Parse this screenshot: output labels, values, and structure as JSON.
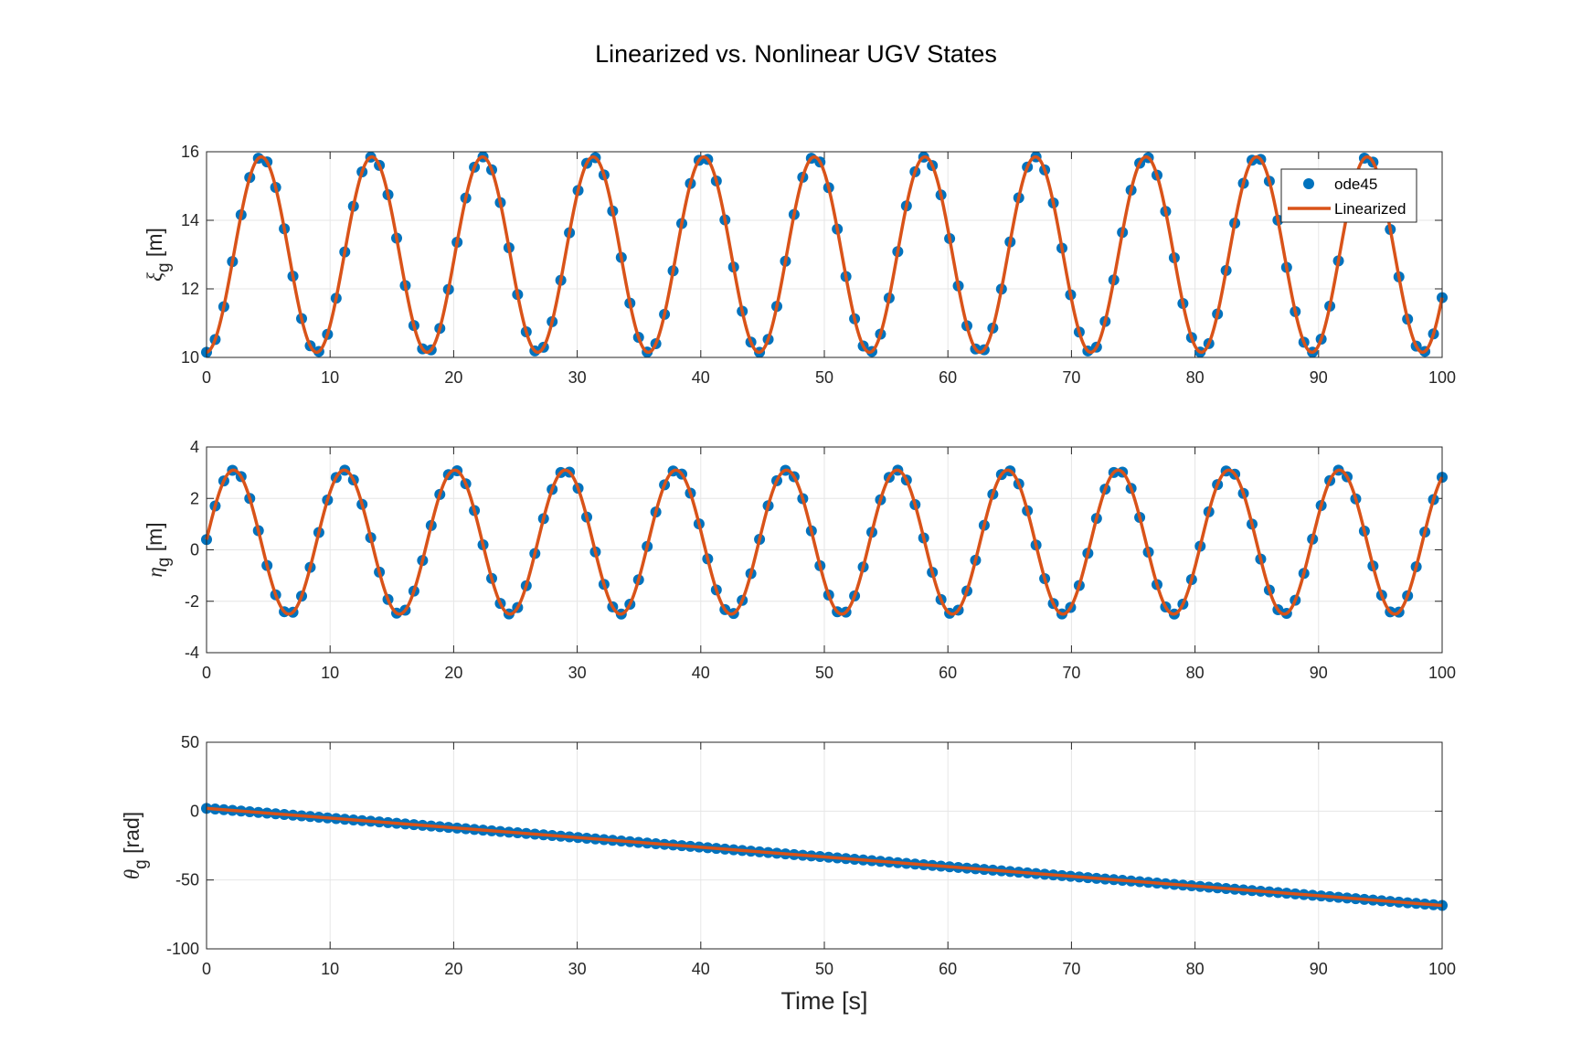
{
  "title": "Linearized vs. Nonlinear UGV States",
  "colors": {
    "marker": "#0072BD",
    "line": "#D95319",
    "grid": "#e6e6e6",
    "axes": "#262626"
  },
  "legend": {
    "entries": [
      "ode45",
      "Linearized"
    ],
    "placement": "top-right (top subplot)"
  },
  "chart_data": [
    {
      "type": "line",
      "ylabel_symbol": "ξ",
      "ylabel_sub": "g",
      "ylabel_unit": "[m]",
      "xlabel": "",
      "xlim": [
        0,
        100
      ],
      "ylim": [
        10,
        16
      ],
      "xticks": [
        "0",
        "10",
        "20",
        "30",
        "40",
        "50",
        "60",
        "70",
        "80",
        "90",
        "100"
      ],
      "yticks": [
        "10",
        "12",
        "14",
        "16"
      ],
      "grid": true,
      "series": [
        {
          "name": "ode45",
          "style": "markers",
          "model": {
            "form": "sine",
            "offset": 13,
            "amplitude": 2.85,
            "period": 8.95,
            "phase_time": 2.2
          },
          "sample_step": 0.7
        },
        {
          "name": "Linearized",
          "style": "line",
          "model": {
            "form": "sine",
            "offset": 13,
            "amplitude": 2.85,
            "period": 8.95,
            "phase_time": 2.2
          }
        }
      ]
    },
    {
      "type": "line",
      "ylabel_symbol": "η",
      "ylabel_sub": "g",
      "ylabel_unit": "[m]",
      "xlabel": "",
      "xlim": [
        0,
        100
      ],
      "ylim": [
        -4,
        4
      ],
      "xticks": [
        "0",
        "10",
        "20",
        "30",
        "40",
        "50",
        "60",
        "70",
        "80",
        "90",
        "100"
      ],
      "yticks": [
        "-4",
        "-2",
        "0",
        "2",
        "4"
      ],
      "grid": true,
      "series": [
        {
          "name": "ode45",
          "style": "markers",
          "model": {
            "form": "sine",
            "offset": 0.3,
            "amplitude": 2.8,
            "period": 8.95,
            "phase_time": -0.05
          },
          "sample_step": 0.7
        },
        {
          "name": "Linearized",
          "style": "line",
          "model": {
            "form": "sine",
            "offset": 0.3,
            "amplitude": 2.8,
            "period": 8.95,
            "phase_time": -0.05
          }
        }
      ]
    },
    {
      "type": "line",
      "ylabel_symbol": "θ",
      "ylabel_sub": "g",
      "ylabel_unit": "[rad]",
      "xlabel": "Time [s]",
      "xlim": [
        0,
        100
      ],
      "ylim": [
        -100,
        50
      ],
      "xticks": [
        "0",
        "10",
        "20",
        "30",
        "40",
        "50",
        "60",
        "70",
        "80",
        "90",
        "100"
      ],
      "yticks": [
        "-100",
        "-50",
        "0",
        "50"
      ],
      "grid": true,
      "series": [
        {
          "name": "ode45",
          "style": "markers",
          "model": {
            "form": "linear",
            "y0": 2,
            "y1": -68.5
          },
          "sample_step": 0.7
        },
        {
          "name": "Linearized",
          "style": "line",
          "model": {
            "form": "linear",
            "y0": 2,
            "y1": -68.5
          }
        }
      ]
    }
  ]
}
